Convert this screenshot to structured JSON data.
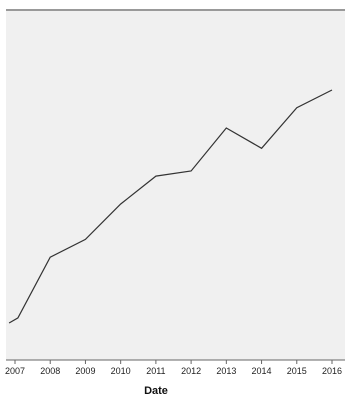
{
  "chart_data": {
    "type": "line",
    "xlabel": "Date",
    "ylabel": "",
    "x": [
      "2006-11",
      "2007-02",
      "2008-01",
      "2009-01",
      "2010-01",
      "2011-01",
      "2012-01",
      "2013-01",
      "2014-01",
      "2015-01",
      "2016-01"
    ],
    "series": [
      {
        "values": [
          0.08,
          0.1,
          0.34,
          0.41,
          0.55,
          0.66,
          0.68,
          0.85,
          0.77,
          0.93,
          1.0
        ]
      }
    ],
    "x_ticks": [
      "2007",
      "2008",
      "2009",
      "2010",
      "2011",
      "2012",
      "2013",
      "2014",
      "2015",
      "2016"
    ],
    "ylim": [
      0,
      1.35
    ],
    "grid": false,
    "colors": {
      "plot_bg": "#f0f0f0",
      "line": "#333333",
      "frame": "#999999"
    }
  }
}
